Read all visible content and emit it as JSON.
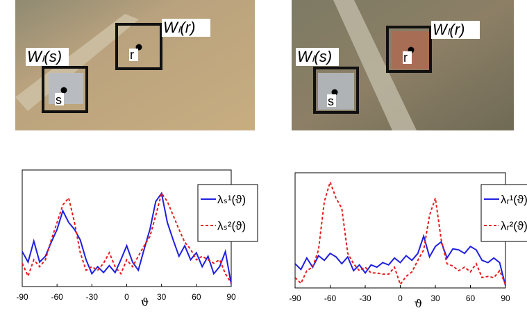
{
  "images": [
    {
      "window_s": "Wₗ(s)",
      "window_r": "Wₗ(r)",
      "point_s": "s",
      "point_r": "r"
    },
    {
      "window_s": "Wₗ(s)",
      "window_r": "Wₗ(r)",
      "point_s": "s",
      "point_r": "r"
    }
  ],
  "chart_data": [
    {
      "type": "line",
      "xlabel": "ϑ",
      "xlim": [
        -90,
        90
      ],
      "xticks": [
        -90,
        -60,
        -30,
        0,
        30,
        60,
        90
      ],
      "ylim": [
        0,
        1
      ],
      "x": [
        -90,
        -85,
        -80,
        -75,
        -70,
        -65,
        -60,
        -55,
        -50,
        -45,
        -40,
        -35,
        -30,
        -25,
        -20,
        -15,
        -10,
        -5,
        0,
        5,
        10,
        15,
        20,
        25,
        30,
        35,
        40,
        45,
        50,
        55,
        60,
        65,
        70,
        75,
        80,
        85,
        90
      ],
      "series": [
        {
          "name": "λₛ¹(ϑ)",
          "color": "#1f1fe0",
          "dash": false,
          "values": [
            0.3,
            0.21,
            0.39,
            0.21,
            0.26,
            0.38,
            0.49,
            0.65,
            0.55,
            0.49,
            0.4,
            0.23,
            0.11,
            0.17,
            0.12,
            0.18,
            0.12,
            0.23,
            0.35,
            0.21,
            0.14,
            0.32,
            0.49,
            0.73,
            0.8,
            0.55,
            0.4,
            0.26,
            0.35,
            0.23,
            0.29,
            0.17,
            0.26,
            0.11,
            0.17,
            0.3,
            0.02
          ]
        },
        {
          "name": "λₛ²(ϑ)",
          "color": "#e81c1c",
          "dash": true,
          "values": [
            0.2,
            0.09,
            0.23,
            0.17,
            0.23,
            0.4,
            0.55,
            0.7,
            0.76,
            0.55,
            0.29,
            0.14,
            0.17,
            0.14,
            0.2,
            0.29,
            0.17,
            0.11,
            0.23,
            0.17,
            0.26,
            0.35,
            0.43,
            0.61,
            0.8,
            0.73,
            0.61,
            0.49,
            0.38,
            0.32,
            0.23,
            0.26,
            0.23,
            0.2,
            0.23,
            0.11,
            0.03
          ]
        }
      ]
    },
    {
      "type": "line",
      "xlabel": "ϑ",
      "xlim": [
        -90,
        90
      ],
      "xticks": [
        -90,
        -60,
        -30,
        0,
        30,
        60,
        90
      ],
      "ylim": [
        0,
        1
      ],
      "x": [
        -90,
        -85,
        -80,
        -75,
        -70,
        -65,
        -60,
        -55,
        -50,
        -45,
        -40,
        -35,
        -30,
        -25,
        -20,
        -15,
        -10,
        -5,
        0,
        5,
        10,
        15,
        20,
        25,
        30,
        35,
        40,
        45,
        50,
        55,
        60,
        65,
        70,
        75,
        80,
        85,
        90
      ],
      "series": [
        {
          "name": "λᵣ¹(ϑ)",
          "color": "#1f1fe0",
          "dash": false,
          "values": [
            0.21,
            0.16,
            0.26,
            0.18,
            0.28,
            0.24,
            0.3,
            0.27,
            0.21,
            0.27,
            0.15,
            0.2,
            0.13,
            0.2,
            0.18,
            0.22,
            0.2,
            0.26,
            0.22,
            0.28,
            0.24,
            0.3,
            0.45,
            0.27,
            0.36,
            0.4,
            0.26,
            0.34,
            0.33,
            0.3,
            0.36,
            0.33,
            0.24,
            0.22,
            0.26,
            0.22,
            0.02
          ]
        },
        {
          "name": "λᵣ²(ϑ)",
          "color": "#e81c1c",
          "dash": true,
          "values": [
            0.09,
            0.04,
            0.15,
            0.18,
            0.33,
            0.75,
            0.92,
            0.78,
            0.69,
            0.3,
            0.21,
            0.15,
            0.18,
            0.13,
            0.13,
            0.12,
            0.12,
            0.18,
            0.03,
            0.1,
            0.14,
            0.24,
            0.33,
            0.63,
            0.78,
            0.42,
            0.21,
            0.19,
            0.15,
            0.18,
            0.14,
            0.21,
            0.09,
            0.1,
            0.09,
            0.15,
            0.03
          ]
        }
      ]
    }
  ]
}
